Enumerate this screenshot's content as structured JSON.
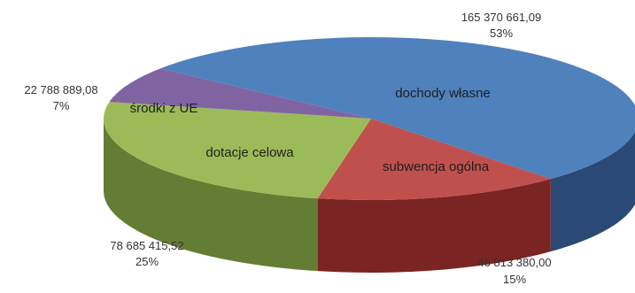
{
  "chart_data": {
    "type": "pie",
    "style": "3d",
    "slices": [
      {
        "label": "dochody własne",
        "value": 165370661.09,
        "value_label": "165 370 661,09",
        "percent": "53%",
        "color": "#4f81bd",
        "side_color": "#2a4a75"
      },
      {
        "label": "subwencja ogólna",
        "value": 46813380.0,
        "value_label": "46 813 380,00",
        "percent": "15%",
        "color": "#c0504d",
        "side_color": "#7a2523"
      },
      {
        "label": "dotacje celowa",
        "value": 78685415.52,
        "value_label": "78 685 415,52",
        "percent": "25%",
        "color": "#9bbb59",
        "side_color": "#647d34"
      },
      {
        "label": "środki z UE",
        "value": 22788889.08,
        "value_label": "22 788 889,08",
        "percent": "7%",
        "color": "#8064a2",
        "side_color": "#523d6c"
      }
    ]
  }
}
